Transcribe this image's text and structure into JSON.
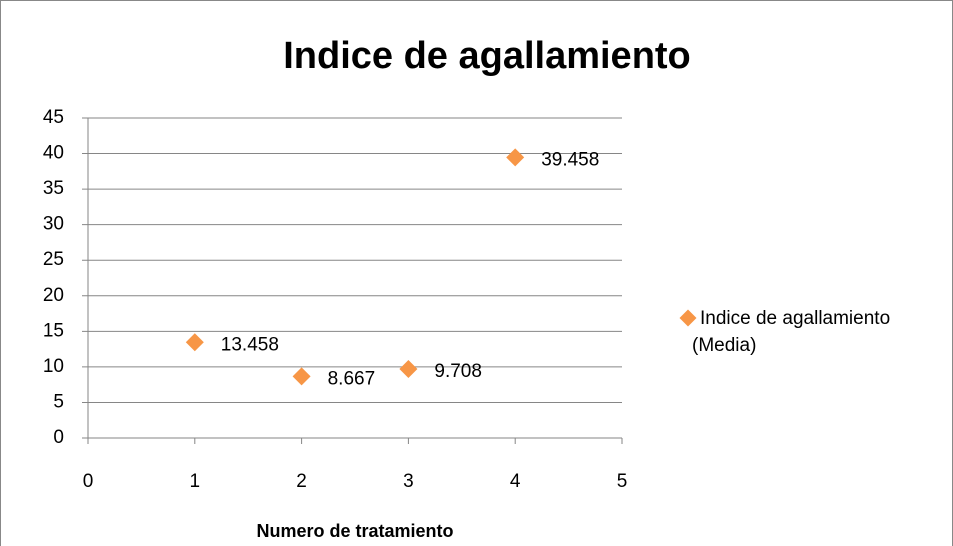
{
  "chart_data": {
    "type": "scatter",
    "title": "Indice de agallamiento",
    "x_label": "Numero de tratamiento",
    "series": [
      {
        "name": "Indice de agallamiento (Media)",
        "color": "#f79646",
        "x": [
          1,
          2,
          3,
          4
        ],
        "values": [
          13.458,
          8.667,
          9.708,
          39.458
        ]
      }
    ],
    "xlim": [
      0,
      5
    ],
    "xticks": [
      0,
      1,
      2,
      3,
      4,
      5
    ],
    "ylim": [
      0,
      45
    ],
    "yticks": [
      0,
      5,
      10,
      15,
      20,
      25,
      30,
      35,
      40,
      45
    ],
    "grid": true,
    "legend": "right"
  }
}
